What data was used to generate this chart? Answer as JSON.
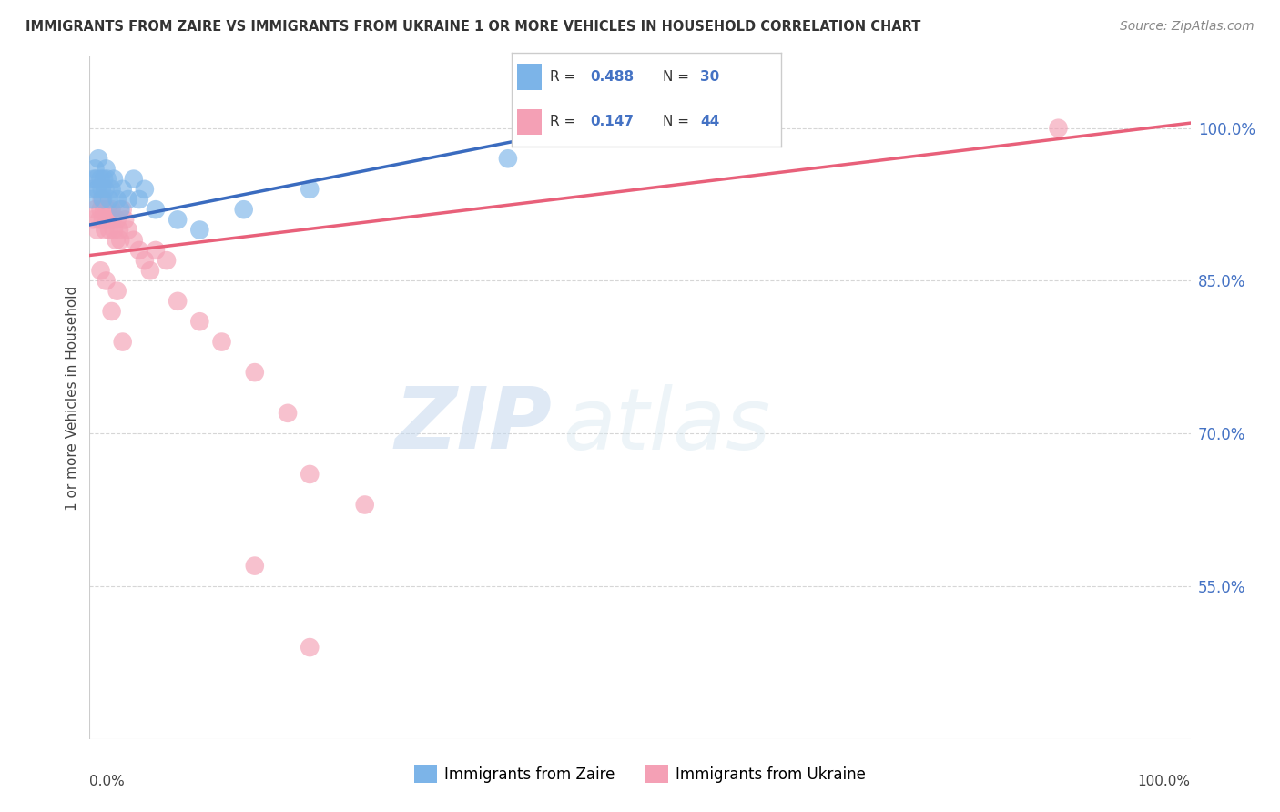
{
  "title": "IMMIGRANTS FROM ZAIRE VS IMMIGRANTS FROM UKRAINE 1 OR MORE VEHICLES IN HOUSEHOLD CORRELATION CHART",
  "source": "Source: ZipAtlas.com",
  "ylabel": "1 or more Vehicles in Household",
  "yticks": [
    55.0,
    70.0,
    85.0,
    100.0
  ],
  "ytick_labels": [
    "55.0%",
    "70.0%",
    "85.0%",
    "100.0%"
  ],
  "zaire_R": 0.488,
  "zaire_N": 30,
  "ukraine_R": 0.147,
  "ukraine_N": 44,
  "zaire_color": "#7cb4e8",
  "ukraine_color": "#f4a0b5",
  "zaire_line_color": "#3a6bbf",
  "ukraine_line_color": "#e8607a",
  "legend_label_zaire": "Immigrants from Zaire",
  "legend_label_ukraine": "Immigrants from Ukraine",
  "watermark_zip": "ZIP",
  "watermark_atlas": "atlas",
  "xmin": 0,
  "xmax": 100,
  "ymin": 40,
  "ymax": 107,
  "zaire_x": [
    0.2,
    0.3,
    0.4,
    0.5,
    0.6,
    0.7,
    0.8,
    1.0,
    1.1,
    1.2,
    1.3,
    1.4,
    1.5,
    1.6,
    1.8,
    2.0,
    2.2,
    2.5,
    2.8,
    3.0,
    3.5,
    4.0,
    4.5,
    5.0,
    6.0,
    8.0,
    10.0,
    14.0,
    20.0,
    38.0
  ],
  "zaire_y": [
    93.0,
    94.0,
    95.0,
    96.0,
    95.0,
    94.0,
    97.0,
    95.0,
    94.0,
    93.0,
    95.0,
    94.0,
    96.0,
    95.0,
    93.0,
    94.0,
    95.0,
    93.0,
    92.0,
    94.0,
    93.0,
    95.0,
    93.0,
    94.0,
    92.0,
    91.0,
    90.0,
    92.0,
    94.0,
    97.0
  ],
  "ukraine_x": [
    0.3,
    0.5,
    0.7,
    0.9,
    1.0,
    1.1,
    1.2,
    1.3,
    1.4,
    1.5,
    1.6,
    1.7,
    1.8,
    2.0,
    2.1,
    2.2,
    2.4,
    2.5,
    2.7,
    2.8,
    3.0,
    3.2,
    3.5,
    4.0,
    4.5,
    5.0,
    5.5,
    6.0,
    7.0,
    8.0,
    10.0,
    12.0,
    15.0,
    18.0,
    20.0,
    25.0,
    2.0,
    3.0,
    1.5,
    2.5,
    1.0,
    15.0,
    20.0,
    88.0
  ],
  "ukraine_y": [
    91.0,
    92.0,
    90.0,
    91.0,
    92.0,
    93.0,
    91.0,
    92.0,
    90.0,
    91.0,
    92.0,
    91.0,
    90.0,
    92.0,
    91.0,
    90.0,
    89.0,
    91.0,
    90.0,
    89.0,
    92.0,
    91.0,
    90.0,
    89.0,
    88.0,
    87.0,
    86.0,
    88.0,
    87.0,
    83.0,
    81.0,
    79.0,
    76.0,
    72.0,
    66.0,
    63.0,
    82.0,
    79.0,
    85.0,
    84.0,
    86.0,
    57.0,
    49.0,
    100.0
  ],
  "zaire_line_x0": 0,
  "zaire_line_y0": 90.5,
  "zaire_line_x1": 40,
  "zaire_line_y1": 99.0,
  "ukraine_line_x0": 0,
  "ukraine_line_y0": 87.5,
  "ukraine_line_x1": 100,
  "ukraine_line_y1": 100.5
}
